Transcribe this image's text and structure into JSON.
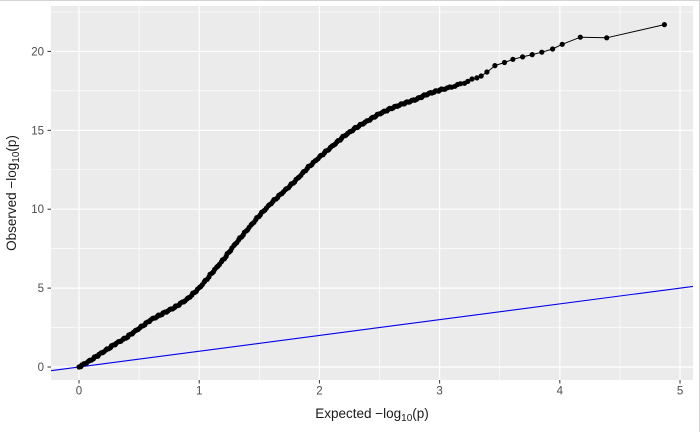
{
  "figure": {
    "kind": "ggplot-qq-plot",
    "title": ""
  },
  "chart_data": {
    "type": "scatter",
    "title": "",
    "xlabel": "Expected −log10(p)",
    "ylabel": "Observed −log10(p)",
    "xlabel_parts": {
      "prefix": "Expected −log",
      "sub": "10",
      "suffix": "(p)"
    },
    "ylabel_parts": {
      "prefix": "Observed −log",
      "sub": "10",
      "suffix": "(p)"
    },
    "xlim": [
      -0.233,
      5.108
    ],
    "ylim": [
      -0.824,
      22.878
    ],
    "x_ticks": [
      0,
      1,
      2,
      3,
      4,
      5
    ],
    "x_tick_labels": [
      "0",
      "1",
      "2",
      "3",
      "4",
      "5"
    ],
    "y_ticks": [
      0,
      5,
      10,
      15,
      20
    ],
    "y_tick_labels": [
      "0",
      "5",
      "10",
      "15",
      "20"
    ],
    "x_minor_ticks": [
      0.5,
      1.5,
      2.5,
      3.5,
      4.5
    ],
    "y_minor_ticks": [
      2.5,
      7.5,
      12.5,
      17.5,
      22.5
    ],
    "grid": "on",
    "legend": "none",
    "panel_background": "#EBEBEB",
    "grid_color": "#FFFFFF",
    "tick_mark_color": "#333333",
    "tick_label_color": "#4D4D4D",
    "axis_title_color": "#1A1A1A",
    "point_color": "#000000",
    "reference_line_color": "#0000EE",
    "series": [
      {
        "name": "observed-quantiles",
        "type": "points-with-line",
        "color": "#000000",
        "dense_curve_anchors": [
          [
            0.0,
            0.0
          ],
          [
            0.05,
            0.22
          ],
          [
            0.1,
            0.45
          ],
          [
            0.2,
            0.95
          ],
          [
            0.3,
            1.45
          ],
          [
            0.4,
            1.9
          ],
          [
            0.5,
            2.45
          ],
          [
            0.6,
            3.0
          ],
          [
            0.7,
            3.4
          ],
          [
            0.8,
            3.8
          ],
          [
            0.9,
            4.3
          ],
          [
            1.0,
            5.0
          ],
          [
            1.1,
            5.9
          ],
          [
            1.2,
            6.8
          ],
          [
            1.3,
            7.8
          ],
          [
            1.4,
            8.7
          ],
          [
            1.5,
            9.6
          ],
          [
            1.6,
            10.4
          ],
          [
            1.7,
            11.1
          ],
          [
            1.8,
            11.8
          ],
          [
            1.9,
            12.6
          ],
          [
            2.0,
            13.3
          ],
          [
            2.1,
            13.95
          ],
          [
            2.2,
            14.6
          ],
          [
            2.3,
            15.15
          ],
          [
            2.4,
            15.6
          ],
          [
            2.5,
            16.05
          ],
          [
            2.6,
            16.4
          ],
          [
            2.7,
            16.7
          ],
          [
            2.8,
            16.95
          ],
          [
            2.9,
            17.3
          ],
          [
            3.0,
            17.55
          ],
          [
            3.1,
            17.75
          ],
          [
            3.2,
            18.0
          ],
          [
            3.3,
            18.3
          ],
          [
            3.38,
            18.6
          ],
          [
            3.42,
            18.85
          ]
        ],
        "tail_points": [
          [
            3.46,
            19.1
          ],
          [
            3.54,
            19.3
          ],
          [
            3.61,
            19.5
          ],
          [
            3.69,
            19.65
          ],
          [
            3.77,
            19.8
          ],
          [
            3.85,
            19.95
          ],
          [
            3.94,
            20.15
          ],
          [
            4.02,
            20.45
          ],
          [
            4.17,
            20.9
          ],
          [
            4.39,
            20.86
          ],
          [
            4.87,
            21.7
          ]
        ]
      },
      {
        "name": "identity-reference-line",
        "type": "line",
        "color": "#0000EE",
        "slope": 1,
        "intercept": 0
      }
    ]
  }
}
